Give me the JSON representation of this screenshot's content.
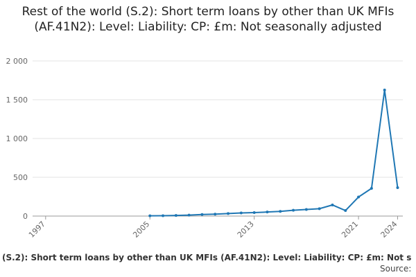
{
  "chart_data": {
    "type": "line",
    "title": "Rest of the world (S.2): Short term loans by other than UK MFIs (AF.41N2): Level: Liability: CP: £m: Not seasonally adjusted",
    "footer": "(S.2): Short term loans by other than UK MFIs (AF.41N2): Level: Liability: CP: £m: Not s",
    "source": "Source:",
    "x": [
      2005,
      2006,
      2007,
      2008,
      2009,
      2010,
      2011,
      2012,
      2013,
      2014,
      2015,
      2016,
      2017,
      2018,
      2019,
      2020,
      2021,
      2022,
      2023,
      2024
    ],
    "series": [
      {
        "color": "#1f77b4",
        "values": [
          3,
          5,
          8,
          12,
          20,
          25,
          32,
          40,
          45,
          52,
          60,
          75,
          85,
          95,
          143,
          71,
          245,
          357,
          1625,
          366
        ]
      }
    ],
    "xlim": [
      1996,
      2024.4
    ],
    "xticks": [
      1997,
      2005,
      2013,
      2021,
      2024
    ],
    "ylim": [
      0,
      2000
    ],
    "yticks": [
      0,
      500,
      {
        "value": 1000,
        "label": "1 000"
      },
      {
        "value": 1500,
        "label": "1 500"
      },
      {
        "value": 2000,
        "label": "2 000"
      }
    ],
    "grid": true
  }
}
